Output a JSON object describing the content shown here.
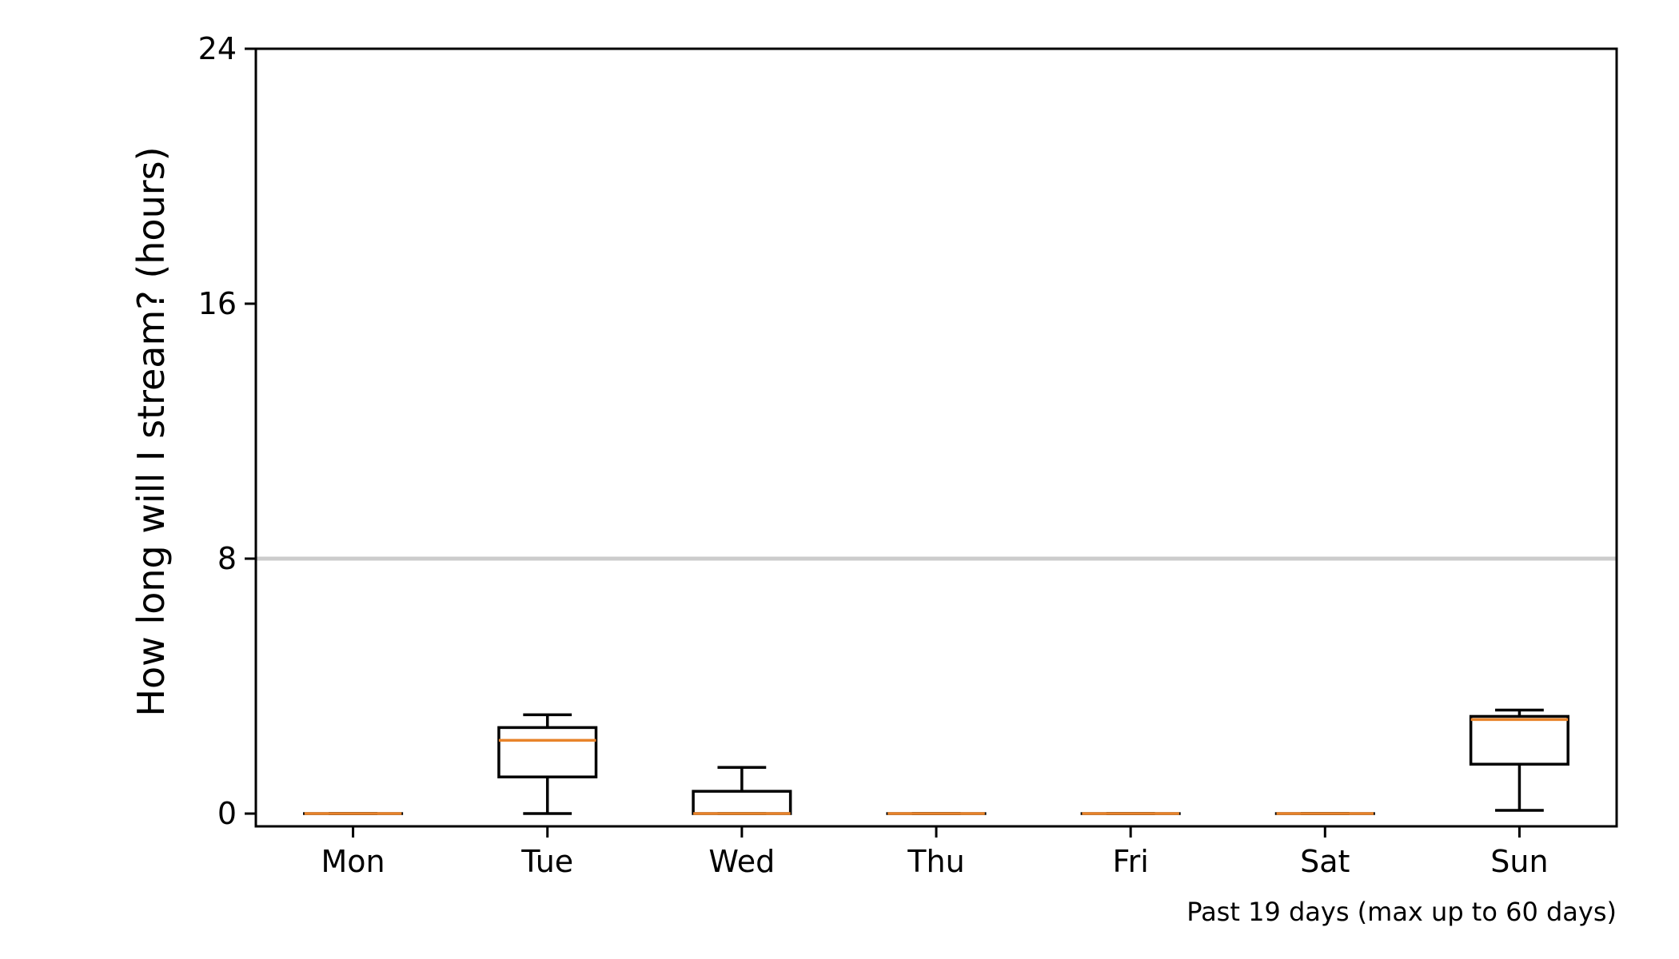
{
  "chart_data": {
    "type": "box",
    "ylabel": "How long will I stream? (hours)",
    "caption": "Past 19 days (max up to 60 days)",
    "ylim": [
      -0.4,
      24
    ],
    "yticks": [
      "0",
      "8",
      "16",
      "24"
    ],
    "yticks_values": [
      0,
      8,
      16,
      24
    ],
    "reference_line": 8,
    "categories": [
      "Mon",
      "Tue",
      "Wed",
      "Thu",
      "Fri",
      "Sat",
      "Sun"
    ],
    "boxes": [
      {
        "day": "Mon",
        "whisker_low": 0,
        "q1": 0,
        "median": 0,
        "q3": 0,
        "whisker_high": 0
      },
      {
        "day": "Tue",
        "whisker_low": 0,
        "q1": 1.15,
        "median": 2.3,
        "q3": 2.7,
        "whisker_high": 3.1
      },
      {
        "day": "Wed",
        "whisker_low": 0,
        "q1": 0,
        "median": 0,
        "q3": 0.7,
        "whisker_high": 1.45
      },
      {
        "day": "Thu",
        "whisker_low": 0,
        "q1": 0,
        "median": 0,
        "q3": 0,
        "whisker_high": 0
      },
      {
        "day": "Fri",
        "whisker_low": 0,
        "q1": 0,
        "median": 0,
        "q3": 0,
        "whisker_high": 0
      },
      {
        "day": "Sat",
        "whisker_low": 0,
        "q1": 0,
        "median": 0,
        "q3": 0,
        "whisker_high": 0
      },
      {
        "day": "Sun",
        "whisker_low": 0.1,
        "q1": 1.55,
        "median": 2.95,
        "q3": 3.05,
        "whisker_high": 3.25
      }
    ],
    "colors": {
      "box": "#000000",
      "median": "#e8832a",
      "reference_line": "#cccccc",
      "axis": "#000000"
    },
    "grid": false,
    "legend": "none"
  }
}
